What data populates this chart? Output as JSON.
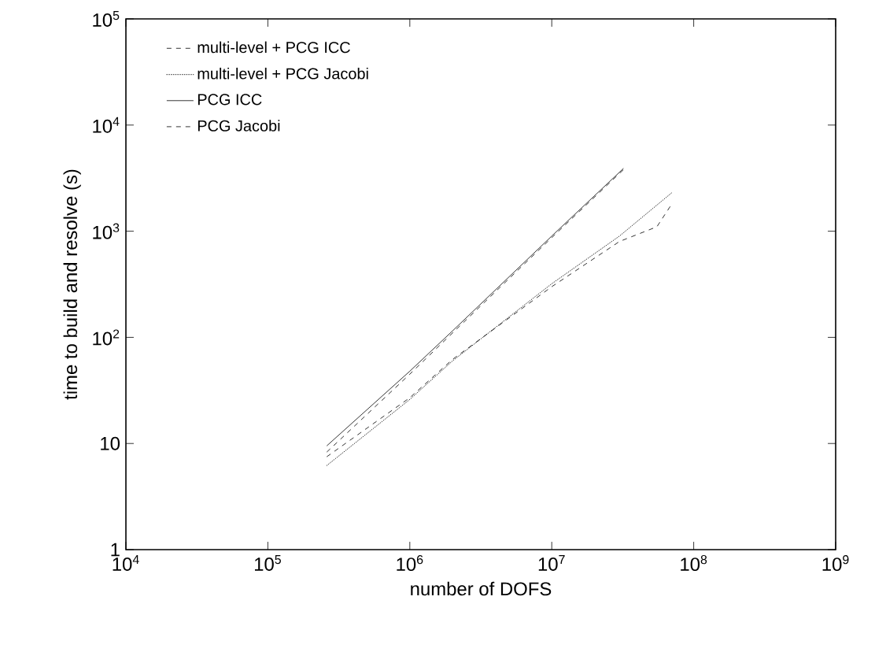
{
  "chart_data": {
    "type": "line",
    "xlabel": "number of DOFS",
    "ylabel": "time to build and resolve (s)",
    "log": "xy",
    "legend": "top left",
    "grid": false,
    "marker": "none",
    "xlim": [
      10000,
      1000000000
    ],
    "ylim": [
      1,
      100000
    ],
    "xticks": [
      {
        "value": 10000,
        "label": "10$^{4}$"
      },
      {
        "value": 100000,
        "label": "10$^{5}$"
      },
      {
        "value": 1000000,
        "label": "10$^{6}$"
      },
      {
        "value": 10000000,
        "label": "10$^{7}$"
      },
      {
        "value": 100000000,
        "label": "10$^{8}$"
      },
      {
        "value": 1000000000,
        "label": "10$^{9}$"
      }
    ],
    "yticks": [
      1,
      10,
      {
        "value": 100,
        "label": "10$^{2}$"
      },
      {
        "value": 1000,
        "label": "10$^{3}$"
      },
      {
        "value": 10000,
        "label": "10$^{4}$"
      },
      {
        "value": 100000,
        "label": "10$^{5}$"
      }
    ],
    "series": [
      {
        "name": "multi-level + PCG ICC",
        "color": "#000000",
        "line_style": "dashed",
        "x": [
          260000,
          1000000,
          2000000,
          10000000,
          32000000
        ],
        "values": [
          8.3,
          45,
          110,
          870,
          3800
        ]
      },
      {
        "name": "multi-level + PCG Jacobi",
        "color": "#000000",
        "line_style": "dotted",
        "x": [
          260000,
          1000000,
          2000000,
          10000000,
          30000000,
          70000000
        ],
        "values": [
          6.2,
          26,
          60,
          320,
          900,
          2300
        ]
      },
      {
        "name": "PCG ICC",
        "color": "#000000",
        "line_style": "solid",
        "x": [
          260000,
          1000000,
          2000000,
          10000000,
          32000000
        ],
        "values": [
          9.5,
          48,
          115,
          900,
          3900
        ]
      },
      {
        "name": "PCG Jacobi",
        "color": "#000000",
        "line_style": "dashed",
        "x": [
          260000,
          1000000,
          2000000,
          10000000,
          30000000,
          55000000,
          70000000
        ],
        "values": [
          7.5,
          27,
          62,
          300,
          800,
          1100,
          1800
        ]
      }
    ]
  }
}
